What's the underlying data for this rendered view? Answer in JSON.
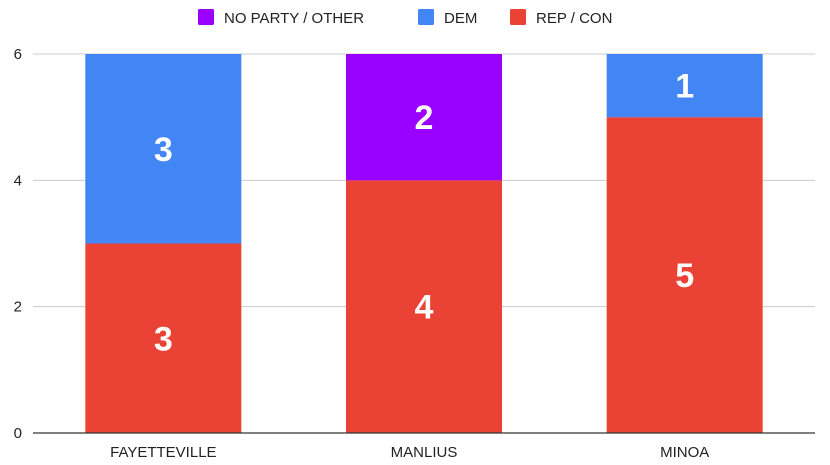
{
  "chart_data": {
    "type": "bar",
    "stacked": true,
    "categories": [
      "FAYETTEVILLE",
      "MANLIUS",
      "MINOA"
    ],
    "series": [
      {
        "name": "REP / CON",
        "color": "#ea4335",
        "values": [
          3,
          4,
          5
        ]
      },
      {
        "name": "DEM",
        "color": "#4285f4",
        "values": [
          3,
          0,
          1
        ]
      },
      {
        "name": "NO PARTY / OTHER",
        "color": "#9900ff",
        "values": [
          0,
          2,
          0
        ]
      }
    ],
    "legend_order": [
      "NO PARTY / OTHER",
      "DEM",
      "REP / CON"
    ],
    "legend_position": "top",
    "title": "",
    "xlabel": "",
    "ylabel": "",
    "ylim": [
      0,
      6
    ],
    "yticks": [
      0,
      2,
      4,
      6
    ],
    "grid": "horizontal",
    "data_labels": true
  }
}
